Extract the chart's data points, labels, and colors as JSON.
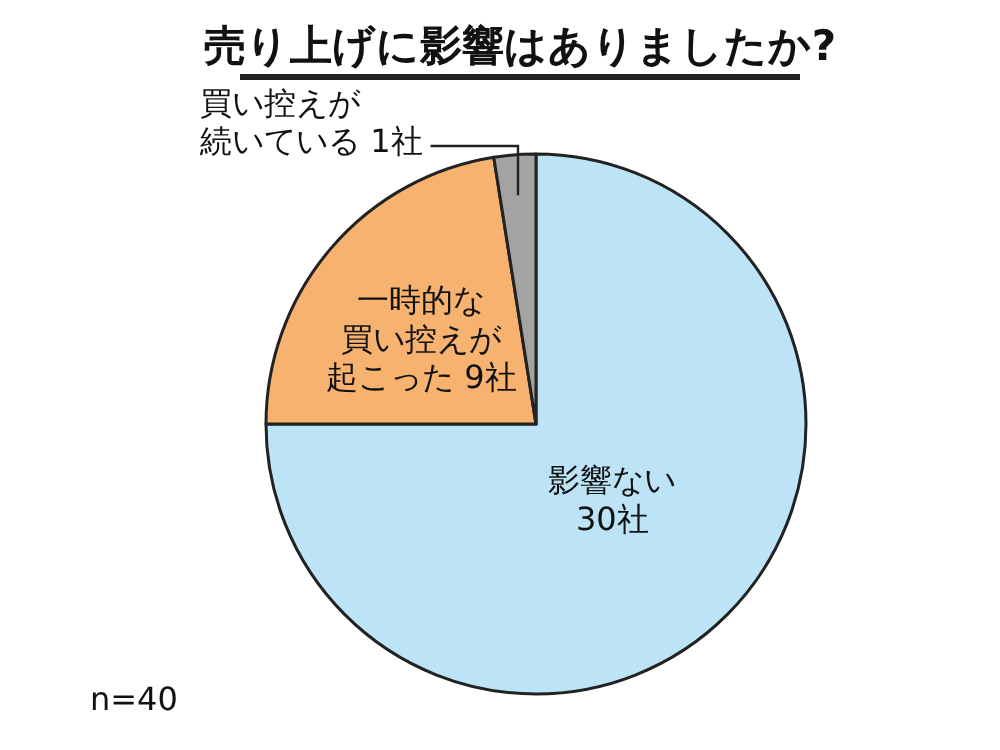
{
  "chart_data": {
    "type": "pie",
    "title": "売り上げに影響はありましたか?",
    "categories": [
      "影響ない",
      "一時的な買い控えが起こった",
      "買い控えが続いている"
    ],
    "values": [
      30,
      9,
      1
    ],
    "value_labels": [
      "30社",
      "9社",
      "1社"
    ],
    "colors": [
      "#bde3f6",
      "#f6b26e",
      "#a3a3a3"
    ],
    "annotations": [
      "n=40"
    ]
  }
}
